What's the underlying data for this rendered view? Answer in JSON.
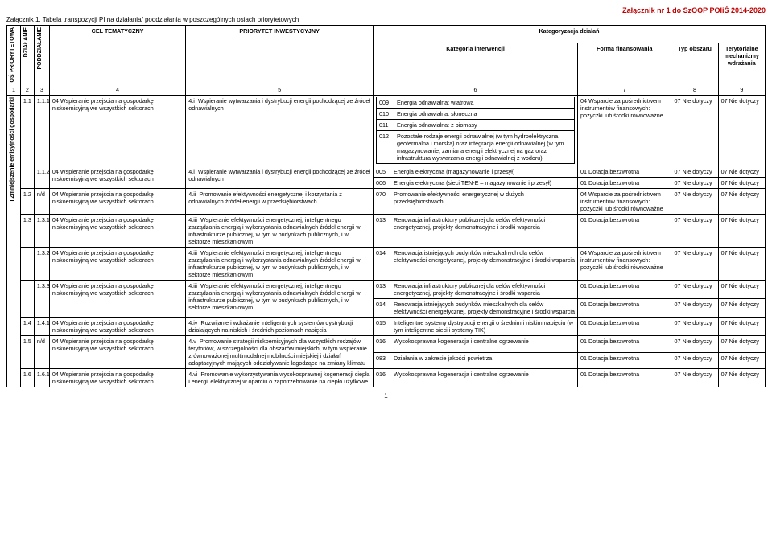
{
  "header": {
    "right": "Załącznik nr 1 do SzOOP POIiŚ 2014-2020",
    "attach_line": "Załącznik 1. Tabela transpozycji PI na działania/ poddziałania w poszczególnych osiach priorytetowych"
  },
  "colhead": {
    "os": "OŚ PRIORYTETOWA",
    "dz": "DZIAŁANIE",
    "pdz": "PODDZIAŁANIE",
    "cel": "CEL TEMATYCZNY",
    "pi": "PRIORYTET INWESTYCYJNY",
    "katgrp": "Kategoryzacja działań",
    "kat": "Kategoria interwencji",
    "fin": "Forma finansowania",
    "typ": "Typ obszaru",
    "ter": "Terytorialne mechanizmy wdrażania"
  },
  "numrow": {
    "c1": "1",
    "c2": "2",
    "c3": "3",
    "c4": "4",
    "c5": "5",
    "c6": "6",
    "c7": "7",
    "c8": "8",
    "c9": "9"
  },
  "os_label": "I Zmniejszenie emisyjności gospodarki",
  "r": {
    "r1": {
      "dz": "1.1",
      "pdz": "1.1.1",
      "cel_code": "04",
      "cel": "Wspieranie przejścia na gospodarkę niskoemisyjną we wszystkich sektorach",
      "pi_code": "4.i",
      "pi": "Wspieranie wytwarzania i dystrybucji energii pochodzącej ze źródeł odnawialnych",
      "k": [
        {
          "c": "009",
          "t": "Energia odnawialna: wiatrowa"
        },
        {
          "c": "010",
          "t": "Energia odnawialna: słoneczna"
        },
        {
          "c": "011",
          "t": "Energia odnawialna: z biomasy"
        },
        {
          "c": "012",
          "t": "Pozostałe rodzaje energii odnawialnej (w tym hydroelektryczna, geotermalna i morska) oraz integracja energii odnawialnej (w tym magazynowanie, zamiana energii elektrycznej na gaz oraz infrastruktura wytwarzania energii odnawialnej z wodoru)"
        }
      ],
      "fin_code": "04",
      "fin": "Wsparcie za pośrednictwem instrumentów finansowych: pożyczki lub środki równoważne",
      "typ": "07 Nie dotyczy",
      "ter": "07 Nie dotyczy"
    },
    "r2": {
      "dz": "",
      "pdz": "1.1.2",
      "cel_code": "04",
      "cel": "Wspieranie przejścia na gospodarkę niskoemisyjną we wszystkich sektorach",
      "pi_code": "4.i",
      "pi": "Wspieranie wytwarzania i dystrybucji energii pochodzącej ze źródeł odnawialnych",
      "k": [
        {
          "c": "005",
          "t": "Energia elektryczna (magazynowanie i przesył)",
          "fin_code": "01",
          "fin": "Dotacja bezzwrotna",
          "typ": "07 Nie dotyczy",
          "ter": "07 Nie dotyczy"
        },
        {
          "c": "006",
          "t": "Energia elektryczna (sieci TEN-E – magazynowanie i przesył)",
          "fin_code": "01",
          "fin": "Dotacja bezzwrotna",
          "typ": "07 Nie dotyczy",
          "ter": "07 Nie dotyczy"
        }
      ]
    },
    "r3": {
      "dz": "1.2",
      "pdz": "n/d",
      "cel_code": "04",
      "cel": "Wspieranie przejścia na gospodarkę niskoemisyjną we wszystkich sektorach",
      "pi_code": "4.ii",
      "pi": "Promowanie efektywności energetycznej i korzystania z odnawialnych źródeł energii w przedsiębiorstwach",
      "k": [
        {
          "c": "070",
          "t": "Promowanie efektywności energetycznej w dużych przedsiębiorstwach"
        }
      ],
      "fin_code": "04",
      "fin": "Wsparcie za pośrednictwem instrumentów finansowych: pożyczki lub środki równoważne",
      "typ": "07 Nie dotyczy",
      "ter": "07 Nie dotyczy"
    },
    "r4": {
      "dz": "1.3",
      "pdz": "1.3.1",
      "cel_code": "04",
      "cel": "Wspieranie przejścia na gospodarkę niskoemisyjną we wszystkich sektorach",
      "pi_code": "4.iii",
      "pi": "Wspieranie efektywności energetycznej, inteligentnego zarządzania energią i wykorzystania odnawialnych źródeł energii w infrastrukturze publicznej, w tym w budynkach publicznych, i w sektorze mieszkaniowym",
      "k": [
        {
          "c": "013",
          "t": "Renowacja infrastruktury publicznej dla celów efektywności energetycznej, projekty demonstracyjne i środki wsparcia"
        }
      ],
      "fin_code": "01",
      "fin": "Dotacja bezzwrotna",
      "typ": "07 Nie dotyczy",
      "ter": "07 Nie dotyczy"
    },
    "r5": {
      "dz": "",
      "pdz": "1.3.2",
      "cel_code": "04",
      "cel": "Wspieranie przejścia na gospodarkę niskoemisyjną we wszystkich sektorach",
      "pi_code": "4.iii",
      "pi": "Wspieranie efektywności energetycznej, inteligentnego zarządzania energią i wykorzystania odnawialnych źródeł energii w infrastrukturze publicznej, w tym w budynkach publicznych, i w sektorze mieszkaniowym",
      "k": [
        {
          "c": "014",
          "t": "Renowacja istniejących budynków mieszkalnych dla celów efektywności energetycznej, projekty demonstracyjne i środki wsparcia"
        }
      ],
      "fin_code": "04",
      "fin": "Wsparcie za pośrednictwem instrumentów finansowych: pożyczki lub środki równoważne",
      "typ": "07 Nie dotyczy",
      "ter": "07 Nie dotyczy"
    },
    "r6": {
      "dz": "",
      "pdz": "1.3.3",
      "cel_code": "04",
      "cel": "Wspieranie przejścia na gospodarkę niskoemisyjną we wszystkich sektorach",
      "pi_code": "4.iii",
      "pi": "Wspieranie efektywności energetycznej, inteligentnego zarządzania energią i wykorzystania odnawialnych źródeł energii w infrastrukturze publicznej, w tym w budynkach publicznych, i w sektorze mieszkaniowym",
      "k": [
        {
          "c": "013",
          "t": "Renowacja infrastruktury publicznej dla celów efektywności energetycznej, projekty demonstracyjne i środki wsparcia",
          "fin_code": "01",
          "fin": "Dotacja bezzwrotna",
          "typ": "07 Nie dotyczy",
          "ter": "07 Nie dotyczy"
        },
        {
          "c": "014",
          "t": "Renowacja istniejących budynków mieszkalnych dla celów efektywności energetycznej, projekty demonstracyjne i środki wsparcia",
          "fin_code": "01",
          "fin": "Dotacja bezzwrotna",
          "typ": "07 Nie dotyczy",
          "ter": "07 Nie dotyczy"
        }
      ]
    },
    "r7": {
      "dz": "1.4",
      "pdz": "1.4.1",
      "cel_code": "04",
      "cel": "Wspieranie przejścia na gospodarkę niskoemisyjną we wszystkich sektorach",
      "pi_code": "4.iv",
      "pi": "Rozwijanie i wdrażanie inteligentnych systemów dystrybucji działających na niskich i średnich poziomach napięcia",
      "k": [
        {
          "c": "015",
          "t": "Inteligentne systemy dystrybucji energii o średnim i niskim napięciu (w tym inteligentne sieci i systemy TIK)"
        }
      ],
      "fin_code": "01",
      "fin": "Dotacja bezzwrotna",
      "typ": "07 Nie dotyczy",
      "ter": "07 Nie dotyczy"
    },
    "r8": {
      "dz": "1.5",
      "pdz": "n/d",
      "cel_code": "04",
      "cel": "Wspieranie przejścia na gospodarkę niskoemisyjną we wszystkich sektorach",
      "pi_code": "4.v",
      "pi": "Promowanie strategii niskoemisyjnych dla wszystkich rodzajów terytoriów, w szczególności dla obszarów miejskich, w tym wspieranie zrównoważonej multimodalnej mobilności miejskiej i działań adaptacyjnych mających oddziaływanie łagodzące na zmiany klimatu",
      "k": [
        {
          "c": "016",
          "t": "Wysokosprawna kogeneracja i centralne ogrzewanie",
          "fin_code": "01",
          "fin": "Dotacja bezzwrotna",
          "typ": "07 Nie dotyczy",
          "ter": "07 Nie dotyczy"
        },
        {
          "c": "083",
          "t": "Działania w zakresie jakości powietrza",
          "fin_code": "01",
          "fin": "Dotacja bezzwrotna",
          "typ": "07 Nie dotyczy",
          "ter": "07 Nie dotyczy"
        }
      ]
    },
    "r9": {
      "dz": "1.6",
      "pdz": "1.6.1",
      "cel_code": "04",
      "cel": "Wspieranie przejścia na gospodarkę niskoemisyjną we wszystkich sektorach",
      "pi_code": "4.vi",
      "pi": "Promowanie wykorzystywania wysokosprawnej kogeneracji ciepła i energii elektrycznej w oparciu o zapotrzebowanie na ciepło użytkowe",
      "k": [
        {
          "c": "016",
          "t": "Wysokosprawna kogeneracja i centralne ogrzewanie"
        }
      ],
      "fin_code": "01",
      "fin": "Dotacja bezzwrotna",
      "typ": "07 Nie dotyczy",
      "ter": "07 Nie dotyczy"
    }
  },
  "pagenum": "1"
}
